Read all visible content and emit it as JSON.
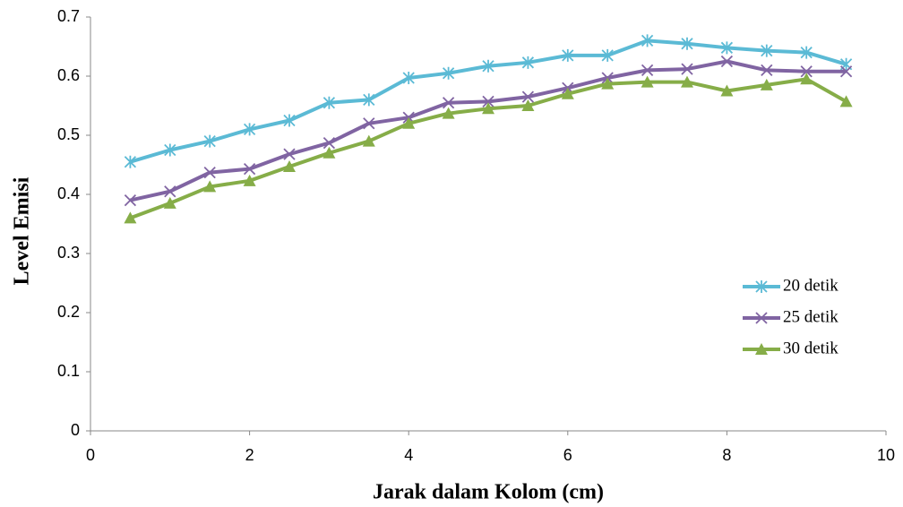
{
  "chart_data": {
    "type": "line",
    "xlabel": "Jarak dalam Kolom (cm)",
    "ylabel": "Level Emisi",
    "x": [
      0.5,
      1,
      1.5,
      2,
      2.5,
      3,
      3.5,
      4,
      4.5,
      5,
      5.5,
      6,
      6.5,
      7,
      7.5,
      8,
      8.5,
      9,
      9.5
    ],
    "series": [
      {
        "name": "20 detik",
        "color": "#5bbad5",
        "marker": "asterisk",
        "values": [
          0.455,
          0.475,
          0.49,
          0.51,
          0.525,
          0.555,
          0.56,
          0.597,
          0.605,
          0.617,
          0.623,
          0.635,
          0.635,
          0.66,
          0.655,
          0.648,
          0.643,
          0.64,
          0.62
        ]
      },
      {
        "name": "25 detik",
        "color": "#8064a2",
        "marker": "x",
        "values": [
          0.39,
          0.405,
          0.437,
          0.443,
          0.468,
          0.487,
          0.52,
          0.53,
          0.555,
          0.557,
          0.565,
          0.58,
          0.597,
          0.61,
          0.612,
          0.625,
          0.61,
          0.608,
          0.608
        ]
      },
      {
        "name": "30 detik",
        "color": "#86ad48",
        "marker": "triangle",
        "values": [
          0.36,
          0.385,
          0.413,
          0.423,
          0.447,
          0.47,
          0.49,
          0.52,
          0.537,
          0.545,
          0.55,
          0.57,
          0.587,
          0.59,
          0.59,
          0.575,
          0.585,
          0.595,
          0.557
        ]
      }
    ],
    "xlim": [
      0,
      10
    ],
    "xticks": [
      0,
      2,
      4,
      6,
      8,
      10
    ],
    "ylim": [
      0,
      0.7
    ],
    "yticks": [
      0,
      0.1,
      0.2,
      0.3,
      0.4,
      0.5,
      0.6,
      0.7
    ],
    "grid": false,
    "legend": "right"
  }
}
